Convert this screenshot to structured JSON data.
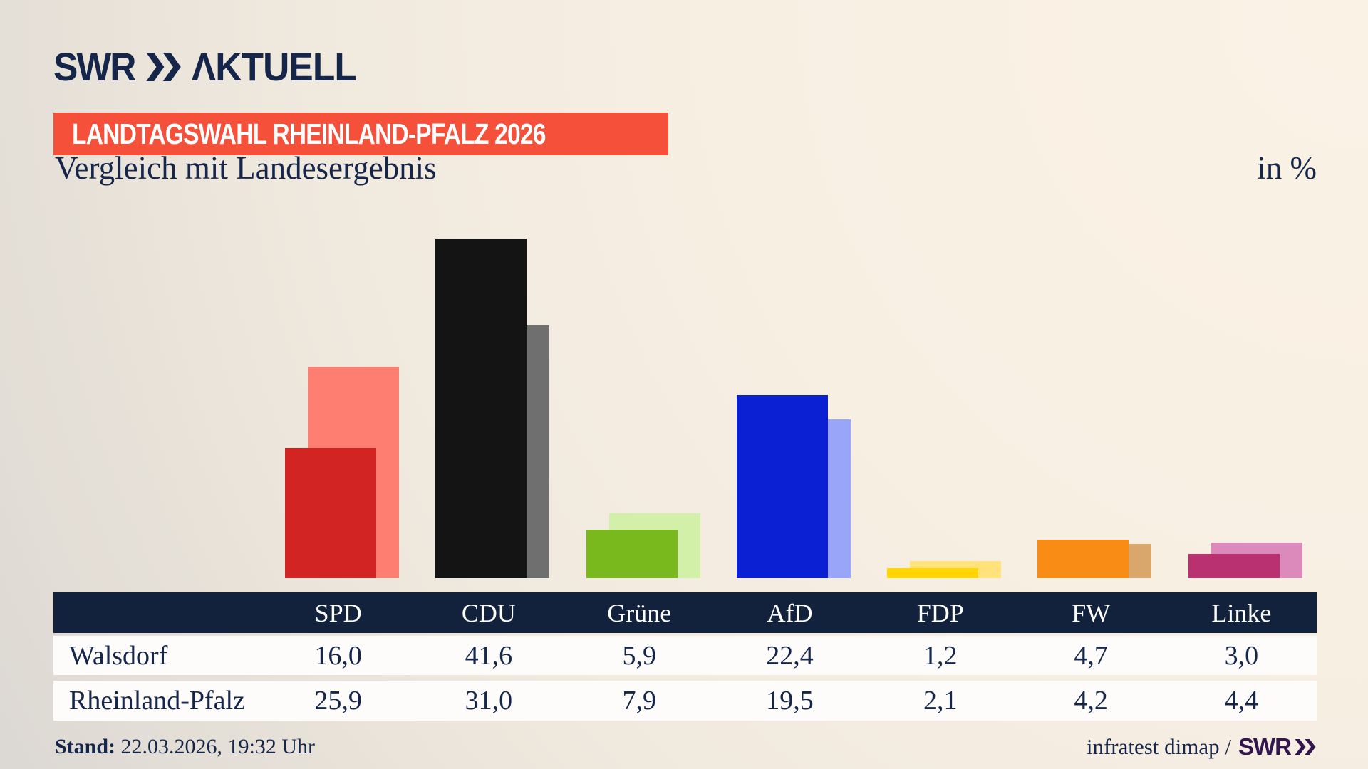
{
  "header": {
    "brand_swr": "SWR",
    "brand_aktuell": "ΛKTUELL",
    "badge": "LANDTAGSWAHL RHEINLAND-PFALZ 2026",
    "title": "Vergleich mit Landesergebnis",
    "unit": "in %"
  },
  "chart_data": {
    "type": "bar",
    "title": "Vergleich mit Landesergebnis",
    "unit": "in %",
    "categories": [
      "SPD",
      "CDU",
      "Grüne",
      "AfD",
      "FDP",
      "FW",
      "Linke"
    ],
    "series": [
      {
        "name": "Walsdorf",
        "position": "front",
        "values": [
          16.0,
          41.6,
          5.9,
          22.4,
          1.2,
          4.7,
          3.0
        ],
        "colors": [
          "#d22423",
          "#141414",
          "#7ab91e",
          "#0b1fd3",
          "#ffd502",
          "#f98c14",
          "#ba3171"
        ]
      },
      {
        "name": "Rheinland-Pfalz",
        "position": "back",
        "values": [
          25.9,
          31.0,
          7.9,
          19.5,
          2.1,
          4.2,
          4.4
        ],
        "colors": [
          "#fe7e71",
          "#6f6f6f",
          "#d3f0a9",
          "#98a5f8",
          "#ffe37a",
          "#d9a76c",
          "#dc8abb"
        ]
      }
    ],
    "ylim": [
      0,
      47.3
    ],
    "grid": false,
    "legend_position": "table-below"
  },
  "table": {
    "rows": [
      {
        "label": "Walsdorf",
        "cells": [
          "16,0",
          "41,6",
          "5,9",
          "22,4",
          "1,2",
          "4,7",
          "3,0"
        ]
      },
      {
        "label": "Rheinland-Pfalz",
        "cells": [
          "25,9",
          "31,0",
          "7,9",
          "19,5",
          "2,1",
          "4,2",
          "4,4"
        ]
      }
    ]
  },
  "footer": {
    "stand_label": "Stand:",
    "stand_value": " 22.03.2026, 19:32 Uhr",
    "attribution_text": "infratest dimap /",
    "attribution_brand": "SWR"
  },
  "colors": {
    "navy_text": "#15264a",
    "table_header_bg": "#12223c",
    "table_row_bg": "#fdfcfa",
    "badge_bg": "#f4503a",
    "badge_text": "#ffffff",
    "brand_purple": "#33164f"
  }
}
